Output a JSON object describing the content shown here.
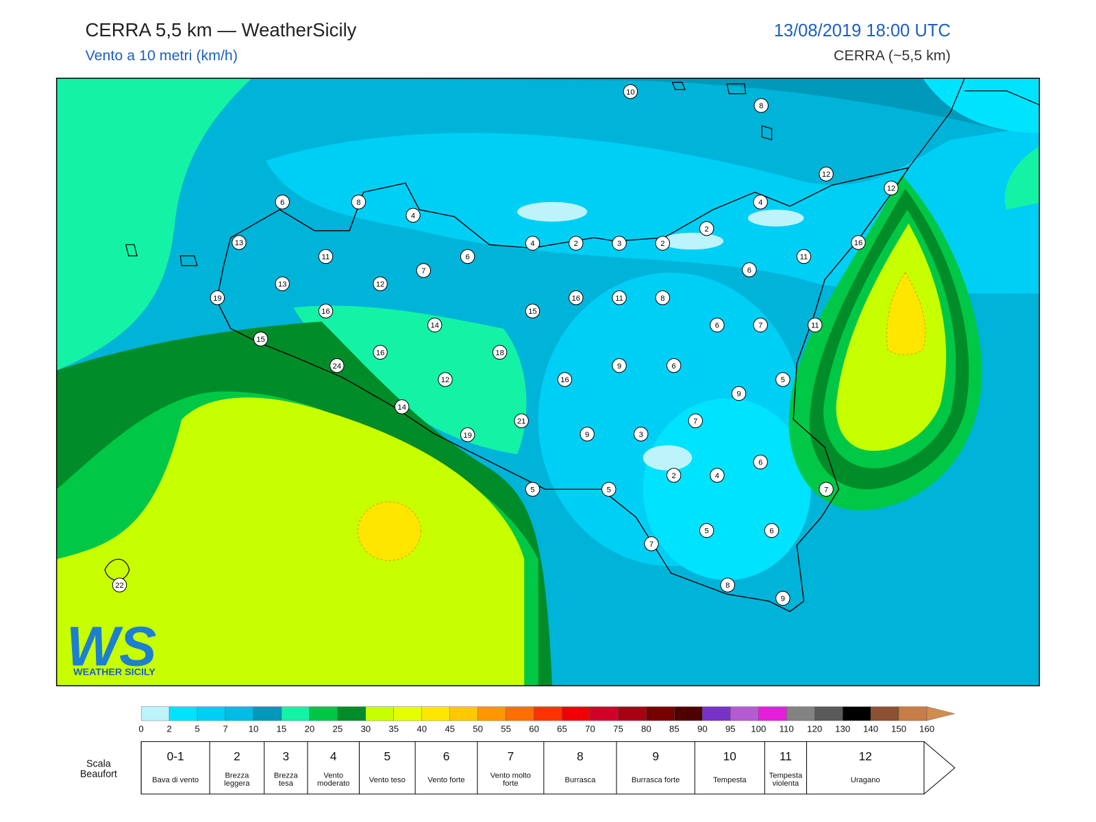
{
  "header": {
    "title": "CERRA 5,5 km — WeatherSicily",
    "subtitle": "Vento a 10 metri (km/h)",
    "datetime": "13/08/2019 18:00 UTC",
    "model": "CERRA (~5,5 km)"
  },
  "map": {
    "station_values": [
      10,
      8,
      12,
      12,
      6,
      8,
      4,
      4,
      2,
      13,
      4,
      2,
      3,
      2,
      16,
      11,
      6,
      11,
      7,
      6,
      13,
      12,
      19,
      16,
      11,
      8,
      16,
      15,
      14,
      6,
      7,
      11,
      15,
      18,
      16,
      24,
      9,
      6,
      12,
      16,
      5,
      9,
      14,
      21,
      7,
      19,
      9,
      3,
      6,
      2,
      4,
      5,
      5,
      7,
      5,
      6,
      7,
      22,
      8,
      9
    ]
  },
  "colorbar": {
    "ticks": [
      0,
      2,
      5,
      7,
      10,
      15,
      20,
      25,
      30,
      35,
      40,
      45,
      50,
      55,
      60,
      65,
      70,
      75,
      80,
      85,
      90,
      95,
      100,
      110,
      120,
      130,
      140,
      150,
      160
    ],
    "colors": [
      "#bdf3fb",
      "#00e3ff",
      "#00cff5",
      "#00bce6",
      "#0099ba",
      "#14f2a6",
      "#00c846",
      "#008c28",
      "#c8ff00",
      "#e4ff00",
      "#ffe600",
      "#ffc800",
      "#ff9600",
      "#ff6e00",
      "#ff3200",
      "#f00000",
      "#d20028",
      "#aa0014",
      "#780000",
      "#500000",
      "#7832c8",
      "#b45ad2",
      "#e61edc",
      "#828282",
      "#5a5a5a",
      "#000000",
      "#8c5032",
      "#c87d46"
    ],
    "overflow_color": "#d28c50"
  },
  "beaufort": {
    "title": "Scala Beaufort",
    "scale": [
      {
        "force": "0-1",
        "label": "Bava di vento"
      },
      {
        "force": "2",
        "label": "Brezza leggera"
      },
      {
        "force": "3",
        "label": "Brezza tesa"
      },
      {
        "force": "4",
        "label": "Vento moderato"
      },
      {
        "force": "5",
        "label": "Vento teso"
      },
      {
        "force": "6",
        "label": "Vento forte"
      },
      {
        "force": "7",
        "label": "Vento molto forte"
      },
      {
        "force": "8",
        "label": "Burrasca"
      },
      {
        "force": "9",
        "label": "Burrasca forte"
      },
      {
        "force": "10",
        "label": "Tempesta"
      },
      {
        "force": "11",
        "label": "Tempesta violenta"
      },
      {
        "force": "12",
        "label": "Uragano"
      }
    ]
  },
  "logo": {
    "mark": "WS",
    "text": "WEATHER SICILY"
  }
}
